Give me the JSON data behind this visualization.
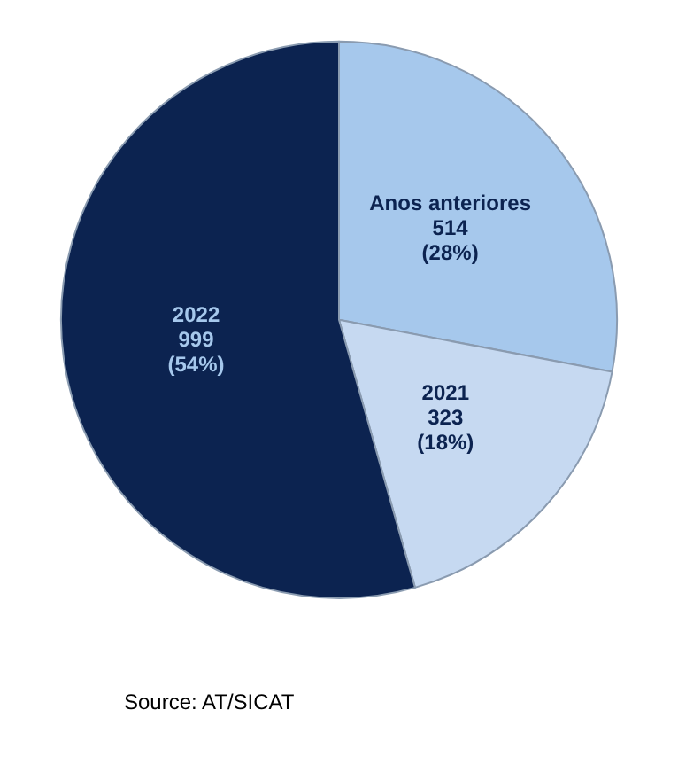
{
  "chart_data": {
    "type": "pie",
    "categories": [
      "Anos anteriores",
      "2021",
      "2022"
    ],
    "values": [
      514,
      323,
      999
    ],
    "colors": [
      "#a6c8ec",
      "#c6d9f1",
      "#0c2350"
    ],
    "value_labels": [
      "514\n(28%)",
      "323\n(18%)",
      "999\n(54%)"
    ],
    "annotations": [
      "Source: AT/SICAT"
    ],
    "legend": false
  }
}
